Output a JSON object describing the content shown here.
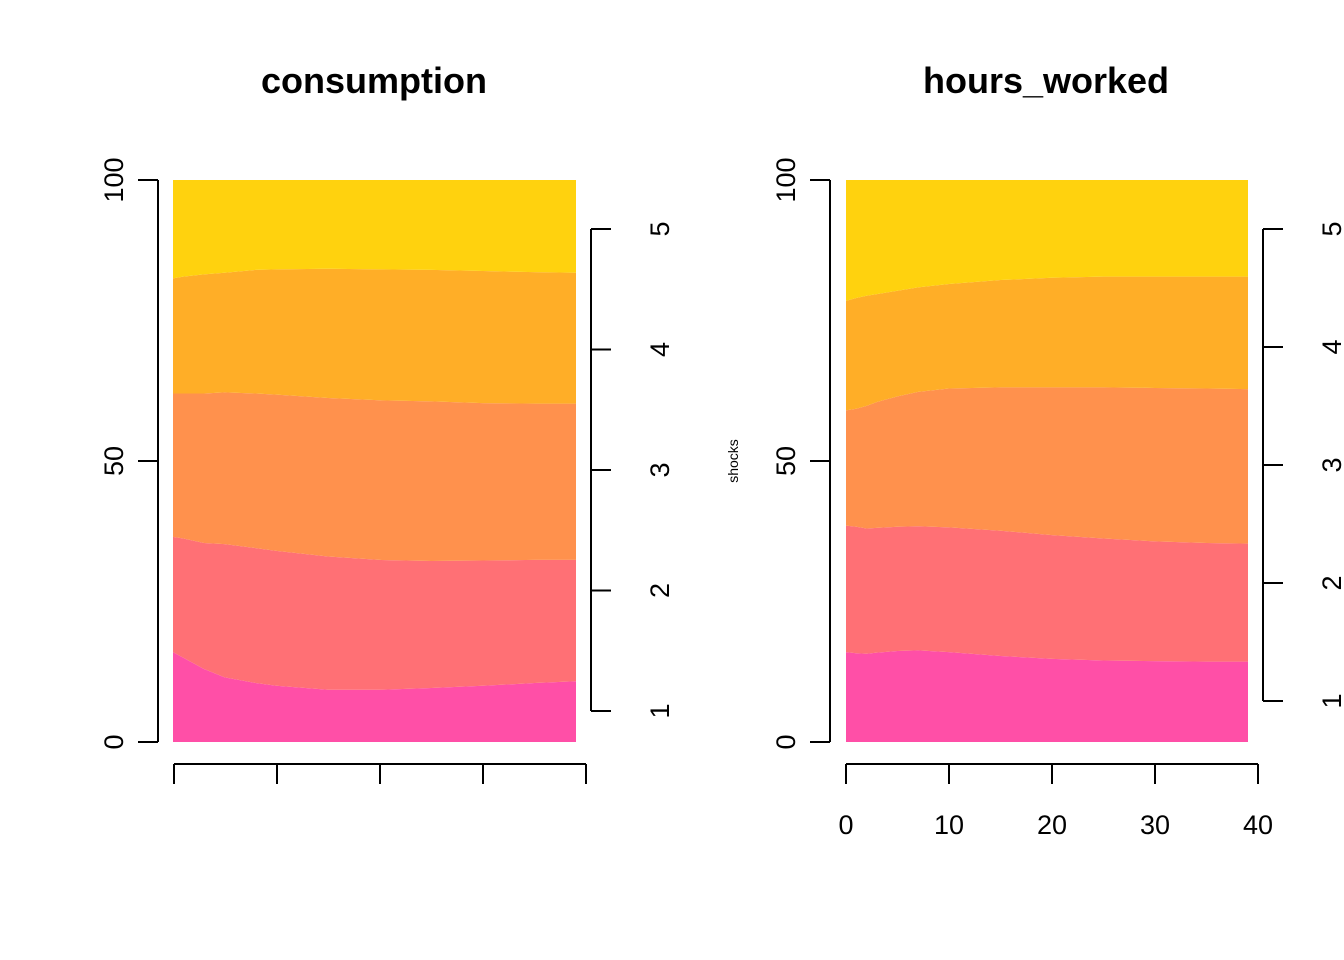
{
  "chart_data": [
    {
      "type": "area",
      "title": "consumption",
      "ylabel": "",
      "x": [
        0,
        1,
        3,
        5,
        8,
        10,
        15,
        20,
        25,
        30,
        35,
        39
      ],
      "ylim": [
        0,
        100
      ],
      "xlim": [
        0,
        40
      ],
      "y_ticks": [
        "0",
        "50",
        "100"
      ],
      "x_ticks": [
        "",
        "",
        "",
        "",
        ""
      ],
      "secondary_ticks": [
        "1",
        "2",
        "3",
        "4",
        "5"
      ],
      "stack_boundaries": [
        [
          16,
          15,
          13,
          11.5,
          10.5,
          10,
          9.3,
          9.3,
          9.6,
          10,
          10.5,
          10.8
        ],
        [
          36.5,
          36.2,
          35.4,
          35.2,
          34.5,
          34,
          33,
          32.4,
          32.2,
          32.3,
          32.4,
          32.4
        ],
        [
          62,
          62,
          62,
          62.2,
          62,
          61.8,
          61.2,
          60.8,
          60.6,
          60.3,
          60.2,
          60.2
        ],
        [
          82.5,
          82.8,
          83.2,
          83.5,
          84,
          84.1,
          84.2,
          84.1,
          84,
          83.8,
          83.6,
          83.5
        ],
        [
          100,
          100,
          100,
          100,
          100,
          100,
          100,
          100,
          100,
          100,
          100,
          100
        ]
      ],
      "colors": [
        "#FF4FA7",
        "#FF7075",
        "#FF914D",
        "#FFAE27",
        "#FFD20E"
      ]
    },
    {
      "type": "area",
      "title": "hours_worked",
      "ylabel": "shocks",
      "x": [
        0,
        1,
        2,
        3,
        5,
        7,
        10,
        15,
        20,
        25,
        30,
        35,
        39
      ],
      "ylim": [
        0,
        100
      ],
      "xlim": [
        0,
        40
      ],
      "y_ticks": [
        "0",
        "50",
        "100"
      ],
      "x_ticks": [
        "0",
        "10",
        "20",
        "30",
        "40"
      ],
      "secondary_ticks": [
        "1",
        "2",
        "3",
        "4",
        "5"
      ],
      "stack_boundaries": [
        [
          16,
          15.8,
          15.7,
          15.9,
          16.2,
          16.3,
          16,
          15.3,
          14.8,
          14.5,
          14.4,
          14.3,
          14.3
        ],
        [
          38.5,
          38.3,
          38,
          38.1,
          38.3,
          38.4,
          38.2,
          37.6,
          36.8,
          36.2,
          35.7,
          35.4,
          35.3
        ],
        [
          59,
          59.3,
          59.8,
          60.5,
          61.5,
          62.3,
          62.9,
          63.1,
          63.1,
          63.1,
          63.0,
          62.9,
          62.8
        ],
        [
          78.5,
          79,
          79.4,
          79.7,
          80.3,
          80.9,
          81.5,
          82.2,
          82.6,
          82.8,
          82.8,
          82.8,
          82.8
        ],
        [
          100,
          100,
          100,
          100,
          100,
          100,
          100,
          100,
          100,
          100,
          100,
          100,
          100
        ]
      ],
      "colors": [
        "#FF4FA7",
        "#FF7075",
        "#FF914D",
        "#FFAE27",
        "#FFD20E"
      ]
    }
  ]
}
